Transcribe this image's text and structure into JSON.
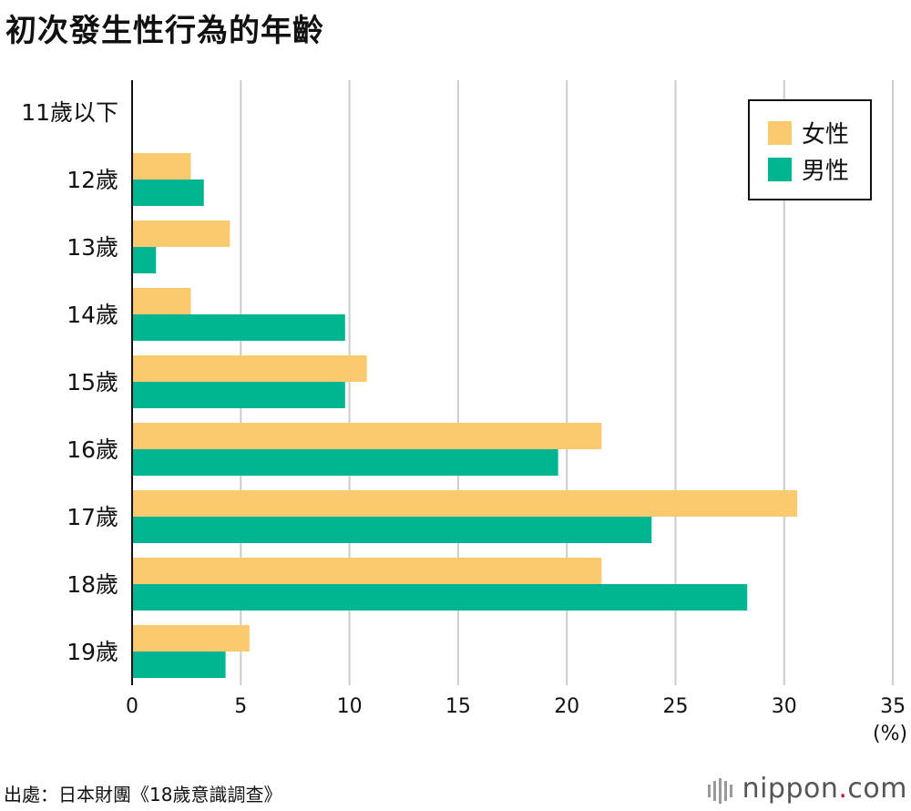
{
  "title": "初次發生性行為的年齡",
  "source": "出處：日本財團《18歲意識調查》",
  "brand": {
    "name": "nippon",
    "dot": ".",
    "suffix": "com"
  },
  "colors": {
    "female": "#FBC96E",
    "male": "#00B592",
    "grid": "#cccccc",
    "axis": "#111111"
  },
  "chart_data": {
    "type": "bar",
    "orientation": "horizontal",
    "title": "初次發生性行為的年齡",
    "categories": [
      "11歲以下",
      "12歲",
      "13歲",
      "14歲",
      "15歲",
      "16歲",
      "17歲",
      "18歲",
      "19歲"
    ],
    "series": [
      {
        "name": "女性",
        "color": "#FBC96E",
        "values": [
          0,
          2.7,
          4.5,
          2.7,
          10.8,
          21.6,
          30.6,
          21.6,
          5.4
        ]
      },
      {
        "name": "男性",
        "color": "#00B592",
        "values": [
          0,
          3.3,
          1.1,
          9.8,
          9.8,
          19.6,
          23.9,
          28.3,
          4.3
        ]
      }
    ],
    "xlim": [
      0,
      35
    ],
    "xticks": [
      "0",
      "5",
      "10",
      "15",
      "20",
      "25",
      "30",
      "35"
    ],
    "xunit": "(%)",
    "grid": true,
    "legend": "top-right"
  }
}
